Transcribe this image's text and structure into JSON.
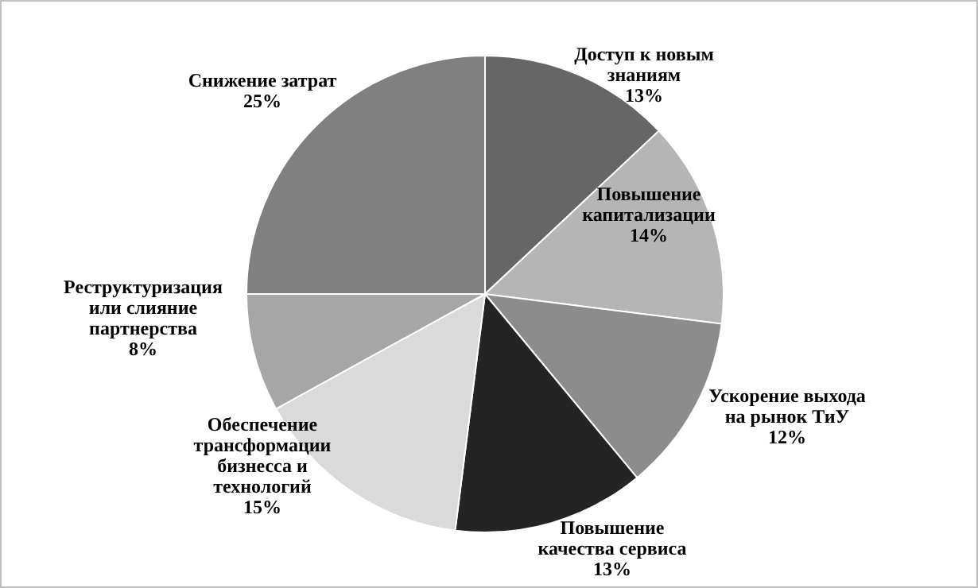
{
  "chart_data": {
    "type": "pie",
    "categories": [
      "Доступ к новым\nзнаниям",
      "Повышение\nкапитализации",
      "Ускорение выхода\nна рынок ТиУ",
      "Повышение\nкачества сервиса",
      "Обеспечение\nтрансформации\nбизнесса и\nтехнологий",
      "Реструктуризация\nили слияние\nпартнерства",
      "Снижение затрат"
    ],
    "values": [
      13,
      14,
      12,
      13,
      15,
      8,
      25
    ],
    "colors": [
      "#666666",
      "#b5b5b5",
      "#8c8c8c",
      "#242424",
      "#dadada",
      "#a6a6a6",
      "#808080"
    ],
    "value_labels": [
      "13%",
      "14%",
      "12%",
      "13%",
      "15%",
      "8%",
      "25%"
    ]
  }
}
